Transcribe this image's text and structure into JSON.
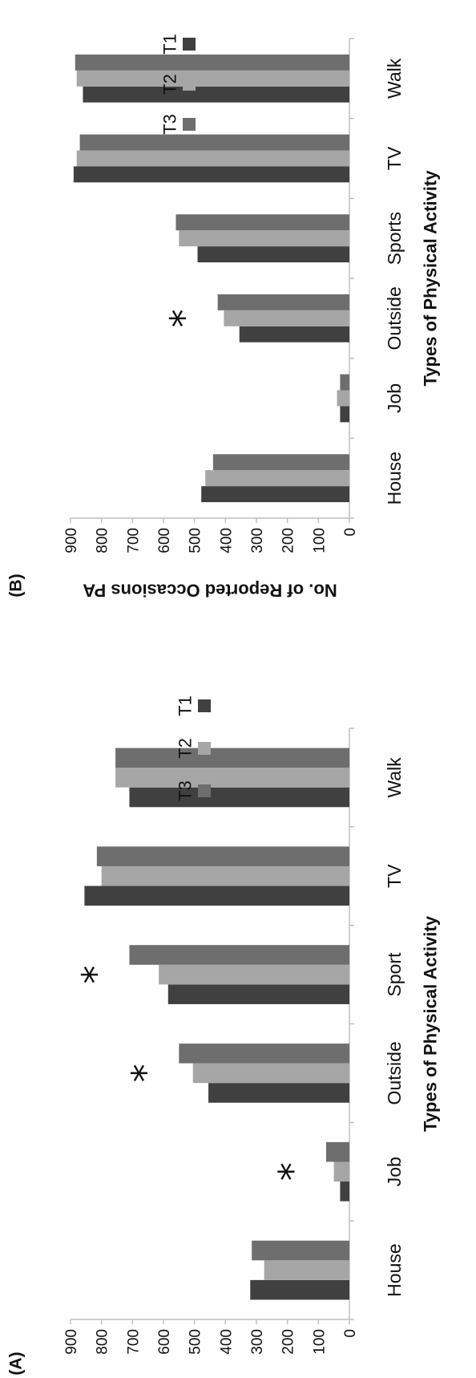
{
  "colors": {
    "T1": "#404040",
    "T2": "#a6a6a6",
    "T3": "#6e6e6e",
    "axis": "#bfbfbf"
  },
  "chart_data": [
    {
      "type": "bar",
      "panel_label": "(A)",
      "xlabel": "Types of Physical Activity",
      "ylabel": "No. of Reported Occasions PA",
      "categories": [
        "House",
        "Job",
        "Outside",
        "Sport",
        "TV",
        "Walk"
      ],
      "ylim": [
        0,
        900
      ],
      "yticks": [
        "0",
        "100",
        "200",
        "300",
        "400",
        "500",
        "600",
        "700",
        "800",
        "900"
      ],
      "legend_position": "top-right",
      "series": [
        {
          "name": "T1",
          "values": [
            320,
            30,
            455,
            585,
            855,
            710
          ]
        },
        {
          "name": "T2",
          "values": [
            275,
            50,
            505,
            615,
            800,
            755
          ]
        },
        {
          "name": "T3",
          "values": [
            315,
            75,
            550,
            710,
            815,
            755
          ]
        }
      ],
      "annotations": [
        {
          "category": "Job",
          "text": "*"
        },
        {
          "category": "Outside",
          "text": "*"
        },
        {
          "category": "Sport",
          "text": "*"
        }
      ]
    },
    {
      "type": "bar",
      "panel_label": "(B)",
      "xlabel": "Types of Physical Activity",
      "ylabel": "No. of Reported Occasions PA",
      "categories": [
        "House",
        "Job",
        "Outside",
        "Sports",
        "TV",
        "Walk"
      ],
      "ylim": [
        0,
        900
      ],
      "yticks": [
        "0",
        "100",
        "200",
        "300",
        "400",
        "500",
        "600",
        "700",
        "800",
        "900"
      ],
      "legend_position": "top-right",
      "series": [
        {
          "name": "T1",
          "values": [
            478,
            30,
            355,
            490,
            890,
            860
          ]
        },
        {
          "name": "T2",
          "values": [
            465,
            40,
            405,
            550,
            880,
            880
          ]
        },
        {
          "name": "T3",
          "values": [
            440,
            30,
            425,
            560,
            870,
            885
          ]
        }
      ],
      "annotations": [
        {
          "category": "Outside",
          "text": "*"
        }
      ]
    }
  ]
}
